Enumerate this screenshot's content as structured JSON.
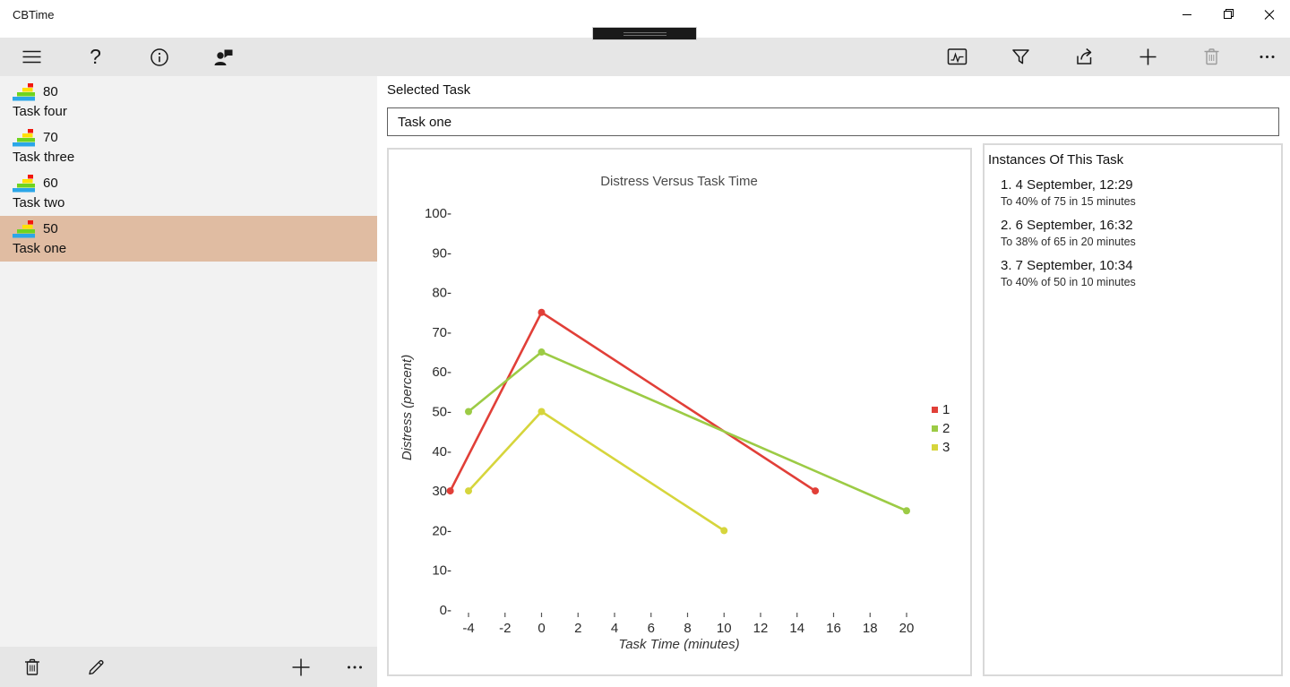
{
  "window": {
    "title": "CBTime",
    "controls": {
      "minimize": "minimize",
      "restore": "restore",
      "close": "close"
    }
  },
  "toolbar": {
    "left_icons": [
      "menu",
      "help",
      "info",
      "contact-feedback"
    ],
    "right_icons": [
      "chart-view",
      "filter",
      "share",
      "add",
      "delete",
      "more"
    ],
    "delete_disabled": true
  },
  "touch_handle": "window-drag-handle",
  "sidebar": {
    "selected_color": "#e0bca2",
    "task_icon_colors": {
      "red": "#f2180d",
      "yellow": "#ffe000",
      "green": "#6fd41f",
      "blue": "#2ba6e8"
    },
    "tasks": [
      {
        "value": "80",
        "name": "Task four",
        "selected": false
      },
      {
        "value": "70",
        "name": "Task three",
        "selected": false
      },
      {
        "value": "60",
        "name": "Task two",
        "selected": false
      },
      {
        "value": "50",
        "name": "Task one",
        "selected": true
      }
    ],
    "command_icons": [
      "delete",
      "edit",
      "add",
      "more"
    ]
  },
  "main": {
    "selected_task_label": "Selected Task",
    "selected_task_value": "Task one"
  },
  "instances": {
    "title": "Instances Of This Task",
    "items": [
      {
        "title": "1. 4 September, 12:29",
        "detail": "To 40% of 75 in 15 minutes"
      },
      {
        "title": "2. 6 September, 16:32",
        "detail": "To 38% of 65 in 20 minutes"
      },
      {
        "title": "3. 7 September, 10:34",
        "detail": "To 40% of 50 in 10 minutes"
      }
    ]
  },
  "chart_data": {
    "type": "line",
    "title": "Distress Versus Task Time",
    "xlabel": "Task Time (minutes)",
    "ylabel": "Distress (percent)",
    "xlim": [
      -5.5,
      21
    ],
    "ylim": [
      0,
      100
    ],
    "x_ticks": [
      -4,
      -2,
      0,
      2,
      4,
      6,
      8,
      10,
      12,
      14,
      16,
      18,
      20
    ],
    "y_ticks": [
      0,
      10,
      20,
      30,
      40,
      50,
      60,
      70,
      80,
      90,
      100
    ],
    "grid": false,
    "legend_position": "right",
    "series": [
      {
        "name": "1",
        "color": "#e13f38",
        "points": [
          [
            -5,
            30
          ],
          [
            0,
            75
          ],
          [
            15,
            30
          ]
        ]
      },
      {
        "name": "2",
        "color": "#9ccb45",
        "points": [
          [
            -4,
            50
          ],
          [
            0,
            65
          ],
          [
            20,
            25
          ]
        ]
      },
      {
        "name": "3",
        "color": "#d6d53c",
        "points": [
          [
            -4,
            30
          ],
          [
            0,
            50
          ],
          [
            10,
            20
          ]
        ]
      }
    ]
  }
}
